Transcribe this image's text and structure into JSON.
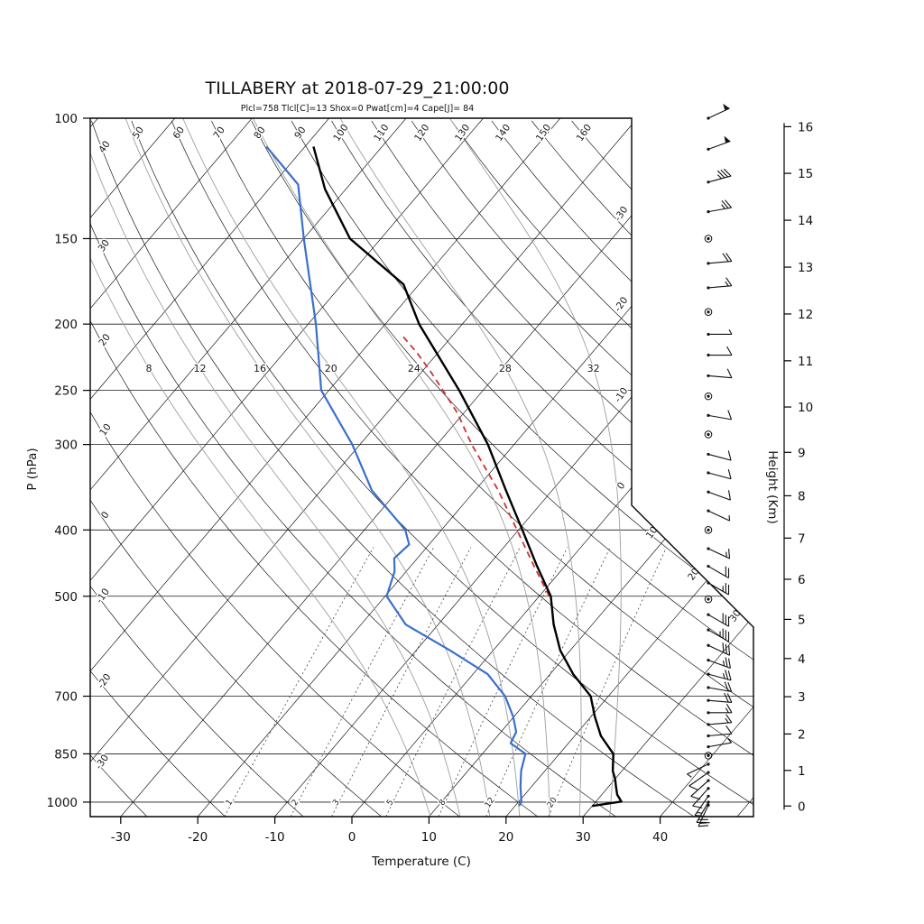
{
  "title": "TILLABERY at 2018-07-29_21:00:00",
  "subtitle": "Plcl=758 Tlcl[C]=13 Shox=0 Pwat[cm]=4 Cape[J]= 84",
  "colors": {
    "temperature": "#000000",
    "dewpoint": "#3b6fc9",
    "parcel": "#d03030",
    "subtitle": "#b03a2e",
    "moist_adiabat": "#9e9e9e",
    "grid": "#1a1a1a"
  },
  "axes": {
    "pressure_label": "P (hPa)",
    "temperature_label": "Temperature (C)",
    "height_label": "Height (Km)",
    "pressure_ticks": [
      100,
      150,
      200,
      250,
      300,
      400,
      500,
      700,
      850,
      1000
    ],
    "temperature_ticks": [
      -30,
      -20,
      -10,
      0,
      10,
      20,
      30,
      40
    ],
    "height_ticks_km": [
      0,
      1,
      2,
      3,
      4,
      5,
      6,
      7,
      8,
      9,
      10,
      11,
      12,
      13,
      14,
      15,
      16
    ]
  },
  "background_labels": {
    "dry_adiabats": [
      -30,
      -20,
      -10,
      0,
      10,
      20,
      30,
      40,
      50,
      60,
      70,
      80,
      90,
      100,
      110,
      120,
      130,
      140,
      150,
      160
    ],
    "isotherms": [
      -30,
      -20,
      -10,
      0,
      10,
      20,
      30
    ],
    "moist_adiabats": [
      8,
      12,
      16,
      20,
      24,
      28,
      32
    ],
    "mixing_ratio": [
      1,
      2,
      3,
      5,
      8,
      12,
      20
    ]
  },
  "chart_data": {
    "type": "line",
    "variant": "skew-t-log-p",
    "station": "TILLABERY",
    "timestamp": "2018-07-29_21:00:00",
    "indices": {
      "Plcl_hPa": 758,
      "Tlcl_C": 13,
      "Showalter": 0,
      "Pwat_cm": 4,
      "Cape_J": 84
    },
    "pressure_range_hpa": [
      100,
      1050
    ],
    "temperature_range_c": [
      -34,
      52
    ],
    "series": [
      {
        "name": "temperature",
        "units": [
          "hPa",
          "C"
        ],
        "points": [
          [
            1013,
            30
          ],
          [
            998,
            33.3
          ],
          [
            975,
            32
          ],
          [
            950,
            31
          ],
          [
            925,
            30
          ],
          [
            900,
            28.8
          ],
          [
            850,
            27
          ],
          [
            800,
            23.4
          ],
          [
            750,
            20.5
          ],
          [
            700,
            17.7
          ],
          [
            650,
            13
          ],
          [
            600,
            8.7
          ],
          [
            550,
            5
          ],
          [
            500,
            1.5
          ],
          [
            450,
            -3.8
          ],
          [
            400,
            -9.5
          ],
          [
            350,
            -16
          ],
          [
            300,
            -23.4
          ],
          [
            250,
            -33.1
          ],
          [
            200,
            -45.6
          ],
          [
            175,
            -52
          ],
          [
            150,
            -64
          ],
          [
            127,
            -72.7
          ],
          [
            110,
            -78.9
          ]
        ]
      },
      {
        "name": "dewpoint",
        "units": [
          "hPa",
          "C"
        ],
        "points": [
          [
            1013,
            20.5
          ],
          [
            1000,
            20.4
          ],
          [
            950,
            18.6
          ],
          [
            900,
            16.9
          ],
          [
            850,
            15.6
          ],
          [
            820,
            12.5
          ],
          [
            790,
            12
          ],
          [
            750,
            9.9
          ],
          [
            700,
            6.6
          ],
          [
            650,
            1.9
          ],
          [
            600,
            -5.6
          ],
          [
            550,
            -14.2
          ],
          [
            500,
            -19.8
          ],
          [
            460,
            -21.5
          ],
          [
            440,
            -23
          ],
          [
            420,
            -22.6
          ],
          [
            400,
            -24.7
          ],
          [
            350,
            -33.4
          ],
          [
            300,
            -41
          ],
          [
            250,
            -51
          ],
          [
            200,
            -59
          ],
          [
            150,
            -70
          ],
          [
            125,
            -76.7
          ],
          [
            110,
            -85
          ]
        ]
      },
      {
        "name": "parcel",
        "units": [
          "hPa",
          "C"
        ],
        "style": "dashed",
        "points": [
          [
            500,
            1.3
          ],
          [
            450,
            -4.2
          ],
          [
            400,
            -10.2
          ],
          [
            350,
            -17
          ],
          [
            300,
            -25.5
          ],
          [
            270,
            -30.8
          ],
          [
            250,
            -35.2
          ],
          [
            235,
            -38.8
          ],
          [
            220,
            -42.8
          ],
          [
            208,
            -46.5
          ]
        ]
      }
    ],
    "winds_p_dir_spd": [
      [
        100,
        65,
        50
      ],
      [
        111,
        70,
        50
      ],
      [
        124,
        75,
        35
      ],
      [
        137,
        80,
        25
      ],
      [
        150,
        0,
        0
      ],
      [
        163,
        85,
        20
      ],
      [
        177,
        85,
        15
      ],
      [
        192,
        0,
        0
      ],
      [
        207,
        90,
        5
      ],
      [
        222,
        90,
        10
      ],
      [
        238,
        95,
        10
      ],
      [
        255,
        0,
        0
      ],
      [
        272,
        100,
        10
      ],
      [
        290,
        0,
        0
      ],
      [
        310,
        105,
        10
      ],
      [
        330,
        105,
        10
      ],
      [
        352,
        110,
        10
      ],
      [
        375,
        115,
        5
      ],
      [
        400,
        0,
        0
      ],
      [
        426,
        115,
        15
      ],
      [
        452,
        120,
        20
      ],
      [
        478,
        120,
        25
      ],
      [
        505,
        0,
        0
      ],
      [
        532,
        120,
        30
      ],
      [
        560,
        120,
        35
      ],
      [
        590,
        115,
        30
      ],
      [
        620,
        110,
        25
      ],
      [
        650,
        105,
        25
      ],
      [
        680,
        100,
        20
      ],
      [
        710,
        95,
        20
      ],
      [
        740,
        90,
        15
      ],
      [
        770,
        85,
        15
      ],
      [
        800,
        85,
        10
      ],
      [
        830,
        80,
        5
      ],
      [
        855,
        0,
        0
      ],
      [
        880,
        245,
        5
      ],
      [
        905,
        235,
        8
      ],
      [
        930,
        228,
        10
      ],
      [
        955,
        222,
        12
      ],
      [
        980,
        215,
        15
      ],
      [
        1000,
        210,
        18
      ],
      [
        1010,
        205,
        22
      ]
    ]
  }
}
